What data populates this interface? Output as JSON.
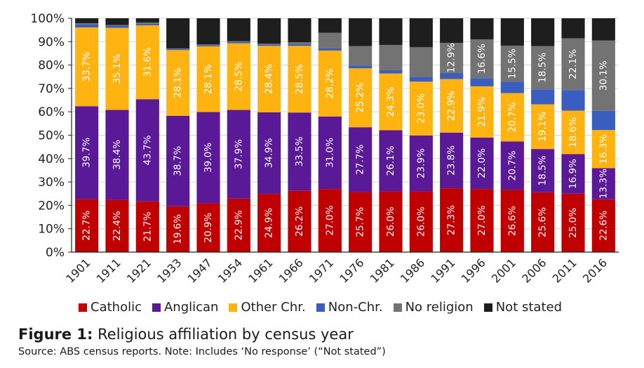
{
  "chart_data": {
    "type": "bar",
    "stacked": true,
    "title": "",
    "xlabel": "",
    "ylabel": "",
    "ylim": [
      0,
      100
    ],
    "y_ticks": [
      "0%",
      "10%",
      "20%",
      "30%",
      "40%",
      "50%",
      "60%",
      "70%",
      "80%",
      "90%",
      "100%"
    ],
    "grid": true,
    "legend_position": "bottom",
    "categories": [
      "1901",
      "1911",
      "1921",
      "1933",
      "1947",
      "1954",
      "1961",
      "1966",
      "1971",
      "1976",
      "1981",
      "1986",
      "1991",
      "1996",
      "2001",
      "2006",
      "2011",
      "2016"
    ],
    "series": [
      {
        "name": "Catholic",
        "color": "#C00000",
        "labeled": true,
        "values": [
          22.7,
          22.4,
          21.7,
          19.6,
          20.9,
          22.9,
          24.9,
          26.2,
          27.0,
          25.7,
          26.0,
          26.0,
          27.3,
          27.0,
          26.6,
          25.6,
          25.0,
          22.6
        ]
      },
      {
        "name": "Anglican",
        "color": "#5A1A97",
        "labeled": true,
        "values": [
          39.7,
          38.4,
          43.7,
          38.7,
          39.0,
          37.9,
          34.9,
          33.5,
          31.0,
          27.7,
          26.1,
          23.9,
          23.8,
          22.0,
          20.7,
          18.5,
          16.9,
          13.3
        ]
      },
      {
        "name": "Other Chr.",
        "color": "#FFB310",
        "labeled": true,
        "values": [
          33.7,
          35.1,
          31.6,
          28.1,
          28.1,
          28.5,
          28.4,
          28.5,
          28.2,
          25.2,
          24.3,
          23.0,
          22.9,
          21.9,
          20.7,
          19.1,
          18.6,
          16.3
        ]
      },
      {
        "name": "Non-Chr.",
        "color": "#3A5EC0",
        "labeled": false,
        "values": [
          1.4,
          0.8,
          0.7,
          0.5,
          0.5,
          0.6,
          0.6,
          0.7,
          0.9,
          1.2,
          1.4,
          2.0,
          2.6,
          3.5,
          4.8,
          6.4,
          8.8,
          8.2
        ]
      },
      {
        "name": "No religion",
        "color": "#737373",
        "labeled": [
          false,
          false,
          false,
          false,
          false,
          false,
          false,
          false,
          false,
          false,
          false,
          false,
          true,
          true,
          true,
          true,
          true,
          true
        ],
        "values": [
          0.4,
          0.4,
          0.5,
          0.2,
          0.3,
          0.3,
          0.3,
          0.8,
          6.7,
          8.3,
          10.8,
          12.7,
          12.9,
          16.6,
          15.5,
          18.5,
          22.1,
          30.1
        ]
      },
      {
        "name": "Not stated",
        "color": "#1E1E1E",
        "labeled": false,
        "values": [
          2.1,
          2.9,
          1.8,
          12.9,
          11.2,
          9.8,
          10.9,
          10.3,
          6.2,
          11.9,
          11.4,
          12.4,
          10.5,
          9.0,
          11.7,
          11.9,
          8.6,
          9.5
        ]
      }
    ]
  },
  "caption": {
    "figure_label": "Figure 1:",
    "title": " Religious affiliation by census year",
    "source": "Source: ABS census reports. Note: Includes ‘No response’ (“Not stated”)"
  }
}
